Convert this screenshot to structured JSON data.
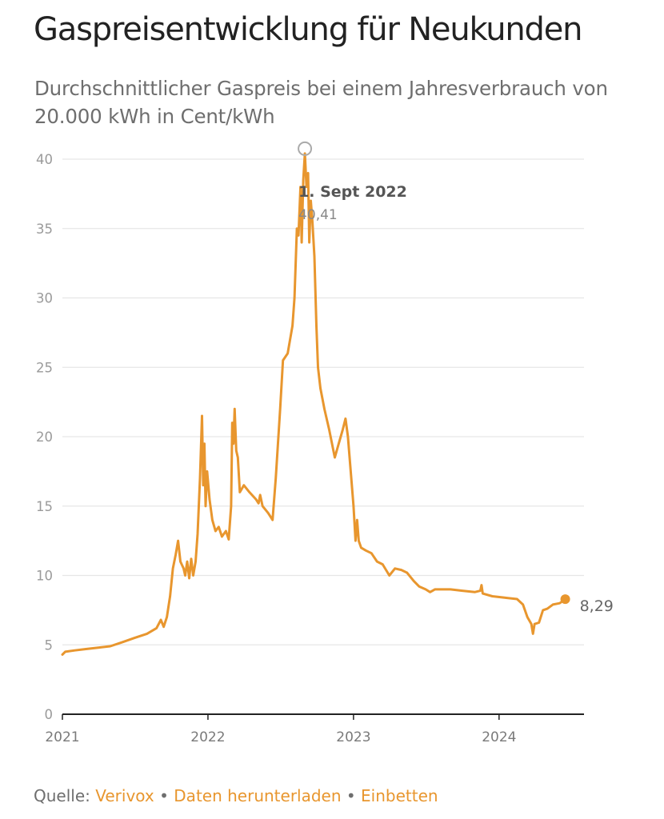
{
  "header": {
    "title": "Gaspreisentwicklung für Neukunden",
    "subtitle": "Durchschnittlicher Gaspreis bei einem Jahresverbrauch von 20.000 kWh in Cent/kWh"
  },
  "footer": {
    "source_label": "Quelle:",
    "source_link": "Verivox",
    "separator": "•",
    "download_link": "Daten herunterladen",
    "embed_link": "Einbetten"
  },
  "colors": {
    "line": "#e8962e",
    "grid": "#e6e6e6",
    "axis": "#222222"
  },
  "chart_data": {
    "type": "line",
    "title": "Gaspreisentwicklung für Neukunden",
    "subtitle": "Durchschnittlicher Gaspreis bei einem Jahresverbrauch von 20.000 kWh in Cent/kWh",
    "xlabel": "",
    "ylabel": "",
    "xlim": [
      "2021-01-01",
      "2024-08-01"
    ],
    "ylim": [
      0,
      40
    ],
    "y_ticks": [
      0,
      5,
      10,
      15,
      20,
      25,
      30,
      35,
      40
    ],
    "x_ticks": [
      {
        "date": "2021-01-01",
        "label": "2021"
      },
      {
        "date": "2022-01-01",
        "label": "2022"
      },
      {
        "date": "2023-01-01",
        "label": "2023"
      },
      {
        "date": "2024-01-01",
        "label": "2024"
      }
    ],
    "grid": true,
    "annotation": {
      "date": "2022-09-01",
      "label": "1. Sept 2022",
      "value_label": "40,41",
      "value": 40.41
    },
    "end_label": {
      "date": "2024-06-15",
      "label": "8,29",
      "value": 8.29
    },
    "series": [
      {
        "points": [
          [
            "2021-01-01",
            4.3
          ],
          [
            "2021-01-08",
            4.5
          ],
          [
            "2021-02-01",
            4.6
          ],
          [
            "2021-03-01",
            4.7
          ],
          [
            "2021-04-01",
            4.8
          ],
          [
            "2021-05-01",
            4.9
          ],
          [
            "2021-06-01",
            5.2
          ],
          [
            "2021-07-01",
            5.5
          ],
          [
            "2021-08-01",
            5.8
          ],
          [
            "2021-08-25",
            6.2
          ],
          [
            "2021-09-05",
            6.8
          ],
          [
            "2021-09-12",
            6.3
          ],
          [
            "2021-09-20",
            7.0
          ],
          [
            "2021-09-28",
            8.5
          ],
          [
            "2021-10-05",
            10.5
          ],
          [
            "2021-10-12",
            11.5
          ],
          [
            "2021-10-18",
            12.5
          ],
          [
            "2021-10-24",
            11.0
          ],
          [
            "2021-11-01",
            10.5
          ],
          [
            "2021-11-05",
            10.0
          ],
          [
            "2021-11-10",
            11.0
          ],
          [
            "2021-11-15",
            9.8
          ],
          [
            "2021-11-20",
            11.2
          ],
          [
            "2021-11-25",
            10.0
          ],
          [
            "2021-12-01",
            11.0
          ],
          [
            "2021-12-06",
            13.0
          ],
          [
            "2021-12-12",
            17.0
          ],
          [
            "2021-12-17",
            21.5
          ],
          [
            "2021-12-20",
            16.5
          ],
          [
            "2021-12-23",
            19.5
          ],
          [
            "2021-12-26",
            15.0
          ],
          [
            "2021-12-30",
            17.5
          ],
          [
            "2022-01-05",
            15.5
          ],
          [
            "2022-01-12",
            14.0
          ],
          [
            "2022-01-20",
            13.2
          ],
          [
            "2022-01-28",
            13.5
          ],
          [
            "2022-02-05",
            12.8
          ],
          [
            "2022-02-15",
            13.2
          ],
          [
            "2022-02-22",
            12.6
          ],
          [
            "2022-02-28",
            15.0
          ],
          [
            "2022-03-03",
            21.0
          ],
          [
            "2022-03-06",
            19.5
          ],
          [
            "2022-03-09",
            22.0
          ],
          [
            "2022-03-13",
            19.0
          ],
          [
            "2022-03-17",
            18.5
          ],
          [
            "2022-03-22",
            16.0
          ],
          [
            "2022-04-01",
            16.5
          ],
          [
            "2022-04-15",
            16.0
          ],
          [
            "2022-05-01",
            15.5
          ],
          [
            "2022-05-08",
            15.2
          ],
          [
            "2022-05-12",
            15.8
          ],
          [
            "2022-05-18",
            15.0
          ],
          [
            "2022-06-01",
            14.5
          ],
          [
            "2022-06-12",
            14.0
          ],
          [
            "2022-06-20",
            17.0
          ],
          [
            "2022-07-01",
            22.0
          ],
          [
            "2022-07-08",
            25.5
          ],
          [
            "2022-07-20",
            26.0
          ],
          [
            "2022-08-01",
            28.0
          ],
          [
            "2022-08-06",
            30.0
          ],
          [
            "2022-08-12",
            35.0
          ],
          [
            "2022-08-16",
            34.5
          ],
          [
            "2022-08-21",
            38.0
          ],
          [
            "2022-08-24",
            34.0
          ],
          [
            "2022-08-28",
            38.5
          ],
          [
            "2022-09-01",
            40.41
          ],
          [
            "2022-09-05",
            38.0
          ],
          [
            "2022-09-09",
            39.0
          ],
          [
            "2022-09-12",
            34.0
          ],
          [
            "2022-09-16",
            37.0
          ],
          [
            "2022-09-20",
            35.5
          ],
          [
            "2022-09-25",
            33.0
          ],
          [
            "2022-09-30",
            28.0
          ],
          [
            "2022-10-04",
            25.0
          ],
          [
            "2022-10-10",
            23.5
          ],
          [
            "2022-10-20",
            22.0
          ],
          [
            "2022-11-01",
            20.5
          ],
          [
            "2022-11-15",
            18.5
          ],
          [
            "2022-11-25",
            19.5
          ],
          [
            "2022-12-05",
            20.5
          ],
          [
            "2022-12-12",
            21.3
          ],
          [
            "2022-12-18",
            20.0
          ],
          [
            "2022-12-25",
            17.5
          ],
          [
            "2023-01-01",
            15.0
          ],
          [
            "2023-01-06",
            12.5
          ],
          [
            "2023-01-10",
            14.0
          ],
          [
            "2023-01-14",
            12.5
          ],
          [
            "2023-01-20",
            12.0
          ],
          [
            "2023-02-01",
            11.8
          ],
          [
            "2023-02-15",
            11.6
          ],
          [
            "2023-03-01",
            11.0
          ],
          [
            "2023-03-15",
            10.8
          ],
          [
            "2023-04-01",
            10.0
          ],
          [
            "2023-04-15",
            10.5
          ],
          [
            "2023-05-01",
            10.4
          ],
          [
            "2023-05-15",
            10.2
          ],
          [
            "2023-06-01",
            9.6
          ],
          [
            "2023-06-15",
            9.2
          ],
          [
            "2023-07-01",
            9.0
          ],
          [
            "2023-07-12",
            8.8
          ],
          [
            "2023-07-24",
            9.0
          ],
          [
            "2023-08-10",
            9.0
          ],
          [
            "2023-09-01",
            9.0
          ],
          [
            "2023-10-01",
            8.9
          ],
          [
            "2023-11-01",
            8.8
          ],
          [
            "2023-11-15",
            8.9
          ],
          [
            "2023-11-18",
            9.3
          ],
          [
            "2023-11-21",
            8.7
          ],
          [
            "2023-12-15",
            8.5
          ],
          [
            "2024-01-15",
            8.4
          ],
          [
            "2024-02-15",
            8.3
          ],
          [
            "2024-03-01",
            7.9
          ],
          [
            "2024-03-12",
            7.0
          ],
          [
            "2024-03-22",
            6.5
          ],
          [
            "2024-03-26",
            5.8
          ],
          [
            "2024-03-30",
            6.5
          ],
          [
            "2024-04-10",
            6.6
          ],
          [
            "2024-04-20",
            7.5
          ],
          [
            "2024-05-01",
            7.6
          ],
          [
            "2024-05-15",
            7.9
          ],
          [
            "2024-06-01",
            8.0
          ],
          [
            "2024-06-15",
            8.29
          ]
        ]
      }
    ]
  }
}
